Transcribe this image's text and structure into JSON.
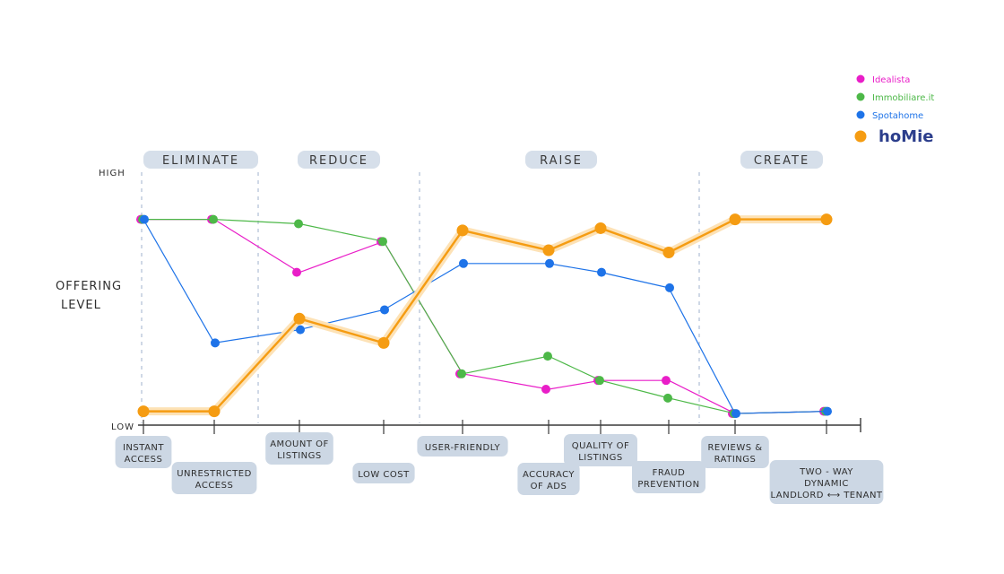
{
  "chart_data": {
    "type": "line",
    "ylabel_lines": [
      "OFFERING",
      "LEVEL"
    ],
    "y_high_label": "HIGH",
    "y_low_label": "LOW",
    "phases": [
      "ELIMINATE",
      "REDUCE",
      "RAISE",
      "CREATE"
    ],
    "categories": [
      [
        "INSTANT",
        "ACCESS"
      ],
      [
        "UNRESTRICTED",
        "ACCESS"
      ],
      [
        "AMOUNT OF",
        "LISTINGS"
      ],
      [
        "LOW COST"
      ],
      [
        "USER-FRIENDLY"
      ],
      [
        "ACCURACY",
        "OF ADS"
      ],
      [
        "QUALITY OF",
        "LISTINGS"
      ],
      [
        "FRAUD",
        "PREVENTION"
      ],
      [
        "REVIEWS &",
        "RATINGS"
      ],
      [
        "TWO - WAY",
        "DYNAMIC",
        "LANDLORD ⟷ TENANT"
      ]
    ],
    "ylim": [
      0,
      10
    ],
    "series": [
      {
        "name": "Idealista",
        "color": "#e91ec8",
        "values": [
          9.0,
          9.0,
          6.6,
          8.0,
          2.0,
          1.3,
          1.7,
          1.7,
          0.2,
          0.3
        ]
      },
      {
        "name": "Immobiliare.it",
        "color": "#4db848",
        "values": [
          9.0,
          9.0,
          8.8,
          8.0,
          2.0,
          2.8,
          1.7,
          0.9,
          0.2,
          0.3
        ]
      },
      {
        "name": "Spotahome",
        "color": "#1e73e8",
        "values": [
          9.0,
          3.4,
          4.0,
          4.9,
          7.0,
          7.0,
          6.6,
          5.9,
          0.2,
          0.3
        ]
      },
      {
        "name": "hoMie",
        "color": "#f59c12",
        "values": [
          0.3,
          0.3,
          4.5,
          3.4,
          8.5,
          7.6,
          8.6,
          7.5,
          9.0,
          9.0
        ]
      }
    ],
    "legend_position": "top-right",
    "grid": false
  }
}
